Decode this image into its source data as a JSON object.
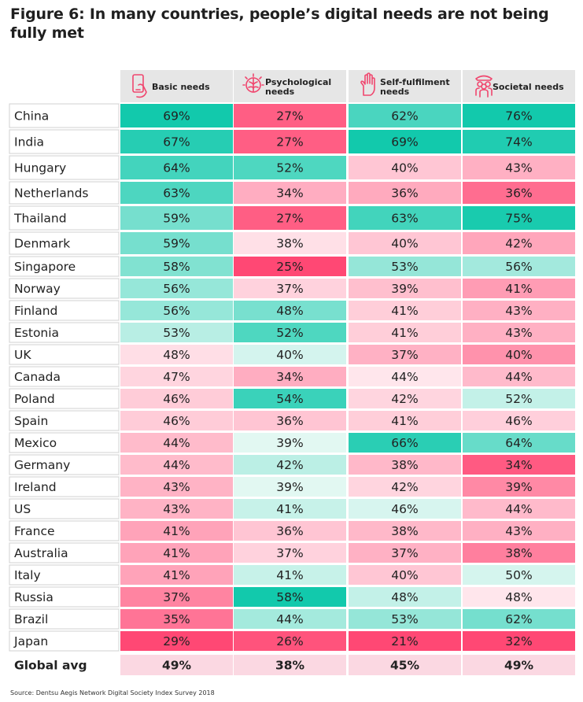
{
  "title": "Figure 6: In many countries, people’s digital needs are not being fully met",
  "source": "Source: Dentsu Aegis Network Digital Society Index Survey 2018",
  "colors": {
    "low_strong": "#ff4874",
    "low_light": "#ffeef2",
    "high_light": "#e4f8f3",
    "high_strong": "#12c9ac",
    "header_bg": "#e6e6e6",
    "icon": "#f0466e"
  },
  "chart_data": {
    "type": "heatmap",
    "title": "Figure 6: In many countries, people’s digital needs are not being fully met",
    "columns": [
      {
        "label_lines": [
          "Basic needs"
        ],
        "icon": "phone-icon"
      },
      {
        "label_lines": [
          "Psychological",
          "needs"
        ],
        "icon": "brain-icon"
      },
      {
        "label_lines": [
          "Self-fulfilment",
          "needs"
        ],
        "icon": "hand-icon"
      },
      {
        "label_lines": [
          "Societal needs"
        ],
        "icon": "people-icon"
      }
    ],
    "rows": [
      {
        "country": "China",
        "values": [
          69,
          27,
          62,
          76
        ]
      },
      {
        "country": "India",
        "values": [
          67,
          27,
          69,
          74
        ]
      },
      {
        "country": "Hungary",
        "values": [
          64,
          52,
          40,
          43
        ]
      },
      {
        "country": "Netherlands",
        "values": [
          63,
          34,
          36,
          36
        ]
      },
      {
        "country": "Thailand",
        "values": [
          59,
          27,
          63,
          75
        ]
      },
      {
        "country": "Denmark",
        "values": [
          59,
          38,
          40,
          42
        ]
      },
      {
        "country": "Singapore",
        "values": [
          58,
          25,
          53,
          56
        ]
      },
      {
        "country": "Norway",
        "values": [
          56,
          37,
          39,
          41
        ]
      },
      {
        "country": "Finland",
        "values": [
          56,
          48,
          41,
          43
        ]
      },
      {
        "country": "Estonia",
        "values": [
          53,
          52,
          41,
          43
        ]
      },
      {
        "country": "UK",
        "values": [
          48,
          40,
          37,
          40
        ]
      },
      {
        "country": "Canada",
        "values": [
          47,
          34,
          44,
          44
        ]
      },
      {
        "country": "Poland",
        "values": [
          46,
          54,
          42,
          52
        ]
      },
      {
        "country": "Spain",
        "values": [
          46,
          36,
          41,
          46
        ]
      },
      {
        "country": "Mexico",
        "values": [
          44,
          39,
          66,
          64
        ]
      },
      {
        "country": "Germany",
        "values": [
          44,
          42,
          38,
          34
        ]
      },
      {
        "country": "Ireland",
        "values": [
          43,
          39,
          42,
          39
        ]
      },
      {
        "country": "US",
        "values": [
          43,
          41,
          46,
          44
        ]
      },
      {
        "country": "France",
        "values": [
          41,
          36,
          38,
          43
        ]
      },
      {
        "country": "Australia",
        "values": [
          41,
          37,
          37,
          38
        ]
      },
      {
        "country": "Italy",
        "values": [
          41,
          41,
          40,
          50
        ]
      },
      {
        "country": "Russia",
        "values": [
          37,
          58,
          48,
          48
        ]
      },
      {
        "country": "Brazil",
        "values": [
          35,
          44,
          53,
          62
        ]
      },
      {
        "country": "Japan",
        "values": [
          29,
          26,
          21,
          32
        ]
      }
    ],
    "global_avg": {
      "label": "Global avg",
      "values": [
        49,
        38,
        45,
        49
      ]
    },
    "unit": "%"
  }
}
